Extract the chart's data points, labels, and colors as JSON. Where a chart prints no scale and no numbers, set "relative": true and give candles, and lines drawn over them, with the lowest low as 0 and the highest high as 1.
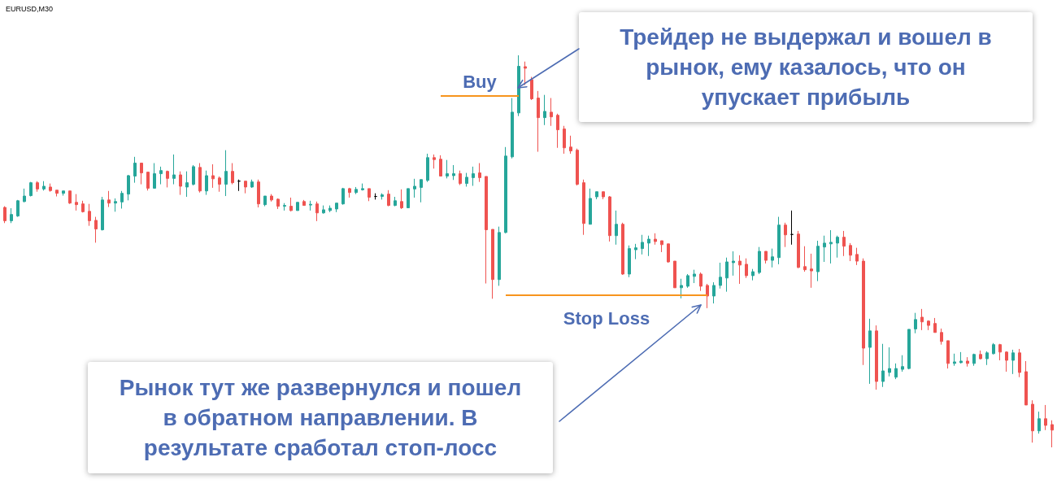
{
  "chart_data": {
    "type": "candlestick",
    "title": "EURUSD,M30",
    "relative": true,
    "categories": [
      null,
      null,
      null,
      null,
      null,
      null,
      null,
      null,
      null,
      null,
      null,
      null,
      null,
      null,
      null,
      null,
      null,
      null,
      null,
      null,
      null,
      null,
      null,
      null,
      null,
      null,
      null,
      null,
      null,
      null,
      null,
      null,
      null,
      null,
      null,
      null,
      null,
      null,
      null,
      null,
      null,
      null,
      null,
      null,
      null,
      null,
      null,
      null,
      null,
      null,
      null,
      null,
      null,
      null,
      null,
      null,
      null,
      null,
      null,
      null,
      null,
      null,
      null,
      null,
      null,
      null,
      null,
      null,
      null,
      null,
      null,
      null,
      null,
      null,
      null,
      null,
      null,
      null,
      null,
      null,
      null,
      null,
      null,
      null,
      null,
      null,
      null,
      null,
      null,
      null,
      null,
      null,
      null,
      null,
      null,
      null,
      null,
      null,
      null,
      null,
      null,
      null,
      null,
      null,
      null,
      null,
      null,
      null,
      null,
      null,
      null,
      null,
      null,
      null,
      null,
      null,
      null,
      null,
      null,
      null,
      null,
      null,
      null,
      null,
      null,
      null,
      null,
      null,
      null,
      null,
      null,
      null,
      null,
      null,
      null,
      null,
      null,
      null,
      null,
      null,
      null,
      null,
      null,
      null,
      null,
      null,
      null,
      null,
      null,
      null,
      null,
      null,
      null,
      null,
      null,
      null,
      null,
      null,
      null,
      null,
      null,
      null
    ],
    "ohlc": [
      [
        0.612,
        0.615,
        0.572,
        0.578
      ],
      [
        0.578,
        0.61,
        0.572,
        0.594
      ],
      [
        0.59,
        0.631,
        0.588,
        0.629
      ],
      [
        0.627,
        0.66,
        0.625,
        0.641
      ],
      [
        0.642,
        0.677,
        0.64,
        0.675
      ],
      [
        0.675,
        0.679,
        0.652,
        0.659
      ],
      [
        0.659,
        0.679,
        0.655,
        0.666
      ],
      [
        0.664,
        0.673,
        0.652,
        0.655
      ],
      [
        0.656,
        0.656,
        0.64,
        0.648
      ],
      [
        0.648,
        0.654,
        0.642,
        0.654
      ],
      [
        0.654,
        0.654,
        0.621,
        0.623
      ],
      [
        0.625,
        0.646,
        0.604,
        0.619
      ],
      [
        0.621,
        0.629,
        0.599,
        0.601
      ],
      [
        0.602,
        0.621,
        0.565,
        0.578
      ],
      [
        0.579,
        0.588,
        0.522,
        0.557
      ],
      [
        0.555,
        0.639,
        0.553,
        0.631
      ],
      [
        0.631,
        0.654,
        0.613,
        0.623
      ],
      [
        0.623,
        0.635,
        0.601,
        0.627
      ],
      [
        0.626,
        0.654,
        0.609,
        0.648
      ],
      [
        0.646,
        0.695,
        0.63,
        0.693
      ],
      [
        0.692,
        0.741,
        0.675,
        0.725
      ],
      [
        0.725,
        0.725,
        0.671,
        0.7
      ],
      [
        0.702,
        0.702,
        0.655,
        0.661
      ],
      [
        0.661,
        0.725,
        0.661,
        0.698
      ],
      [
        0.698,
        0.716,
        0.671,
        0.706
      ],
      [
        0.704,
        0.706,
        0.663,
        0.686
      ],
      [
        0.686,
        0.747,
        0.671,
        0.695
      ],
      [
        0.695,
        0.704,
        0.644,
        0.666
      ],
      [
        0.664,
        0.704,
        0.639,
        0.675
      ],
      [
        0.671,
        0.72,
        0.668,
        0.716
      ],
      [
        0.714,
        0.725,
        0.65,
        0.654
      ],
      [
        0.654,
        0.706,
        0.644,
        0.693
      ],
      [
        0.693,
        0.722,
        0.662,
        0.685
      ],
      [
        0.687,
        0.691,
        0.652,
        0.671
      ],
      [
        0.671,
        0.758,
        0.641,
        0.704
      ],
      [
        0.704,
        0.725,
        0.671,
        0.675
      ],
      [
        0.679,
        0.683,
        0.654,
        0.679
      ],
      [
        0.679,
        0.679,
        0.648,
        0.664
      ],
      [
        0.664,
        0.683,
        0.662,
        0.677
      ],
      [
        0.677,
        0.683,
        0.612,
        0.621
      ],
      [
        0.619,
        0.641,
        0.615,
        0.641
      ],
      [
        0.641,
        0.646,
        0.627,
        0.631
      ],
      [
        0.633,
        0.635,
        0.608,
        0.615
      ],
      [
        0.615,
        0.623,
        0.604,
        0.617
      ],
      [
        0.615,
        0.637,
        0.602,
        0.604
      ],
      [
        0.604,
        0.625,
        0.604,
        0.625
      ],
      [
        0.627,
        0.631,
        0.617,
        0.617
      ],
      [
        0.618,
        0.629,
        0.604,
        0.62
      ],
      [
        0.621,
        0.627,
        0.577,
        0.598
      ],
      [
        0.598,
        0.617,
        0.596,
        0.606
      ],
      [
        0.604,
        0.617,
        0.6,
        0.61
      ],
      [
        0.608,
        0.623,
        0.6,
        0.623
      ],
      [
        0.621,
        0.662,
        0.619,
        0.66
      ],
      [
        0.66,
        0.662,
        0.637,
        0.65
      ],
      [
        0.65,
        0.664,
        0.646,
        0.658
      ],
      [
        0.657,
        0.673,
        0.655,
        0.66
      ],
      [
        0.66,
        0.66,
        0.628,
        0.638
      ],
      [
        0.64,
        0.648,
        0.632,
        0.64
      ],
      [
        0.64,
        0.648,
        0.632,
        0.644
      ],
      [
        0.646,
        0.656,
        0.615,
        0.617
      ],
      [
        0.617,
        0.639,
        0.615,
        0.629
      ],
      [
        0.627,
        0.658,
        0.608,
        0.611
      ],
      [
        0.611,
        0.66,
        0.611,
        0.66
      ],
      [
        0.659,
        0.685,
        0.637,
        0.666
      ],
      [
        0.663,
        0.683,
        0.625,
        0.683
      ],
      [
        0.681,
        0.749,
        0.677,
        0.739
      ],
      [
        0.739,
        0.747,
        0.711,
        0.734
      ],
      [
        0.735,
        0.745,
        0.692,
        0.692
      ],
      [
        0.692,
        0.733,
        0.686,
        0.698
      ],
      [
        0.693,
        0.72,
        0.682,
        0.698
      ],
      [
        0.698,
        0.706,
        0.669,
        0.673
      ],
      [
        0.673,
        0.7,
        0.665,
        0.689
      ],
      [
        0.688,
        0.716,
        0.667,
        0.698
      ],
      [
        0.7,
        0.725,
        0.677,
        0.688
      ],
      [
        0.691,
        0.691,
        0.418,
        0.555
      ],
      [
        0.556,
        0.556,
        0.379,
        0.428
      ],
      [
        0.428,
        0.563,
        0.412,
        0.548
      ],
      [
        0.548,
        0.766,
        0.546,
        0.743
      ],
      [
        0.741,
        0.891,
        0.737,
        0.855
      ],
      [
        0.853,
        1.0,
        0.845,
        0.972
      ],
      [
        0.971,
        0.984,
        0.924,
        0.967
      ],
      [
        0.938,
        0.945,
        0.886,
        0.889
      ],
      [
        0.891,
        0.909,
        0.754,
        0.841
      ],
      [
        0.841,
        0.899,
        0.822,
        0.857
      ],
      [
        0.855,
        0.891,
        0.82,
        0.843
      ],
      [
        0.847,
        0.851,
        0.764,
        0.81
      ],
      [
        0.812,
        0.82,
        0.749,
        0.764
      ],
      [
        0.766,
        0.795,
        0.749,
        0.756
      ],
      [
        0.758,
        0.762,
        0.668,
        0.671
      ],
      [
        0.675,
        0.683,
        0.542,
        0.571
      ],
      [
        0.569,
        0.66,
        0.569,
        0.635
      ],
      [
        0.639,
        0.652,
        0.633,
        0.652
      ],
      [
        0.652,
        0.652,
        0.633,
        0.639
      ],
      [
        0.639,
        0.641,
        0.525,
        0.54
      ],
      [
        0.54,
        0.604,
        0.517,
        0.569
      ],
      [
        0.569,
        0.573,
        0.44,
        0.442
      ],
      [
        0.442,
        0.515,
        0.434,
        0.507
      ],
      [
        0.504,
        0.519,
        0.48,
        0.509
      ],
      [
        0.507,
        0.542,
        0.492,
        0.523
      ],
      [
        0.521,
        0.54,
        0.488,
        0.531
      ],
      [
        0.531,
        0.546,
        0.517,
        0.525
      ],
      [
        0.527,
        0.527,
        0.498,
        0.517
      ],
      [
        0.519,
        0.519,
        0.471,
        0.473
      ],
      [
        0.475,
        0.475,
        0.407,
        0.407
      ],
      [
        0.407,
        0.43,
        0.38,
        0.413
      ],
      [
        0.411,
        0.442,
        0.407,
        0.438
      ],
      [
        0.436,
        0.453,
        0.419,
        0.442
      ],
      [
        0.442,
        0.446,
        0.399,
        0.411
      ],
      [
        0.413,
        0.417,
        0.355,
        0.386
      ],
      [
        0.386,
        0.421,
        0.367,
        0.413
      ],
      [
        0.413,
        0.471,
        0.405,
        0.434
      ],
      [
        0.432,
        0.484,
        0.397,
        0.473
      ],
      [
        0.471,
        0.5,
        0.438,
        0.475
      ],
      [
        0.475,
        0.49,
        0.417,
        0.465
      ],
      [
        0.467,
        0.482,
        0.432,
        0.438
      ],
      [
        0.438,
        0.455,
        0.426,
        0.448
      ],
      [
        0.446,
        0.511,
        0.442,
        0.5
      ],
      [
        0.5,
        0.5,
        0.469,
        0.477
      ],
      [
        0.477,
        0.507,
        0.459,
        0.486
      ],
      [
        0.484,
        0.588,
        0.467,
        0.567
      ],
      [
        0.567,
        0.573,
        0.511,
        0.542
      ],
      [
        0.543,
        0.604,
        0.517,
        0.543
      ],
      [
        0.544,
        0.552,
        0.457,
        0.459
      ],
      [
        0.461,
        0.513,
        0.448,
        0.453
      ],
      [
        0.455,
        0.494,
        0.407,
        0.45
      ],
      [
        0.448,
        0.527,
        0.424,
        0.513
      ],
      [
        0.511,
        0.54,
        0.473,
        0.521
      ],
      [
        0.519,
        0.554,
        0.469,
        0.523
      ],
      [
        0.521,
        0.54,
        0.484,
        0.536
      ],
      [
        0.536,
        0.552,
        0.488,
        0.513
      ],
      [
        0.515,
        0.521,
        0.475,
        0.49
      ],
      [
        0.492,
        0.509,
        0.465,
        0.475
      ],
      [
        0.475,
        0.482,
        0.21,
        0.253
      ],
      [
        0.255,
        0.328,
        0.162,
        0.297
      ],
      [
        0.297,
        0.311,
        0.147,
        0.168
      ],
      [
        0.168,
        0.264,
        0.154,
        0.195
      ],
      [
        0.191,
        0.255,
        0.181,
        0.201
      ],
      [
        0.179,
        0.214,
        0.174,
        0.201
      ],
      [
        0.199,
        0.235,
        0.193,
        0.206
      ],
      [
        0.201,
        0.301,
        0.199,
        0.301
      ],
      [
        0.302,
        0.343,
        0.291,
        0.326
      ],
      [
        0.332,
        0.353,
        0.299,
        0.32
      ],
      [
        0.322,
        0.324,
        0.299,
        0.311
      ],
      [
        0.316,
        0.33,
        0.293,
        0.293
      ],
      [
        0.293,
        0.303,
        0.262,
        0.27
      ],
      [
        0.272,
        0.272,
        0.201,
        0.214
      ],
      [
        0.214,
        0.239,
        0.208,
        0.218
      ],
      [
        0.216,
        0.243,
        0.214,
        0.22
      ],
      [
        0.22,
        0.23,
        0.206,
        0.214
      ],
      [
        0.214,
        0.239,
        0.208,
        0.237
      ],
      [
        0.237,
        0.247,
        0.224,
        0.226
      ],
      [
        0.226,
        0.245,
        0.21,
        0.241
      ],
      [
        0.239,
        0.266,
        0.237,
        0.262
      ],
      [
        0.262,
        0.264,
        0.222,
        0.243
      ],
      [
        0.243,
        0.245,
        0.193,
        0.222
      ],
      [
        0.222,
        0.249,
        0.187,
        0.241
      ],
      [
        0.241,
        0.251,
        0.179,
        0.191
      ],
      [
        0.193,
        0.22,
        0.108,
        0.108
      ],
      [
        0.11,
        0.12,
        0.012,
        0.042
      ],
      [
        0.042,
        0.091,
        0.035,
        0.073
      ],
      [
        0.073,
        0.108,
        0.044,
        0.056
      ],
      [
        0.058,
        0.069,
        0.0,
        0.044
      ]
    ],
    "colors": [
      "#ef5350",
      "#26a69a",
      "#26a69a",
      "#26a69a",
      "#26a69a",
      "#ef5350",
      "#26a69a",
      "#ef5350",
      "#ef5350",
      "#26a69a",
      "#ef5350",
      "#ef5350",
      "#ef5350",
      "#ef5350",
      "#ef5350",
      "#26a69a",
      "#ef5350",
      "#26a69a",
      "#26a69a",
      "#26a69a",
      "#26a69a",
      "#ef5350",
      "#ef5350",
      "#26a69a",
      "#26a69a",
      "#ef5350",
      "#26a69a",
      "#ef5350",
      "#26a69a",
      "#26a69a",
      "#ef5350",
      "#26a69a",
      "#ef5350",
      "#ef5350",
      "#26a69a",
      "#ef5350",
      "#000000",
      "#ef5350",
      "#26a69a",
      "#ef5350",
      "#26a69a",
      "#ef5350",
      "#ef5350",
      "#26a69a",
      "#ef5350",
      "#26a69a",
      "#ef5350",
      "#26a69a",
      "#ef5350",
      "#26a69a",
      "#26a69a",
      "#26a69a",
      "#26a69a",
      "#ef5350",
      "#26a69a",
      "#26a69a",
      "#ef5350",
      "#000000",
      "#26a69a",
      "#ef5350",
      "#26a69a",
      "#ef5350",
      "#26a69a",
      "#26a69a",
      "#26a69a",
      "#26a69a",
      "#ef5350",
      "#ef5350",
      "#26a69a",
      "#26a69a",
      "#ef5350",
      "#26a69a",
      "#26a69a",
      "#ef5350",
      "#ef5350",
      "#ef5350",
      "#26a69a",
      "#26a69a",
      "#26a69a",
      "#26a69a",
      "#ef5350",
      "#ef5350",
      "#ef5350",
      "#26a69a",
      "#ef5350",
      "#ef5350",
      "#ef5350",
      "#ef5350",
      "#ef5350",
      "#ef5350",
      "#26a69a",
      "#26a69a",
      "#ef5350",
      "#ef5350",
      "#26a69a",
      "#ef5350",
      "#26a69a",
      "#26a69a",
      "#26a69a",
      "#26a69a",
      "#ef5350",
      "#ef5350",
      "#ef5350",
      "#ef5350",
      "#26a69a",
      "#26a69a",
      "#26a69a",
      "#ef5350",
      "#ef5350",
      "#26a69a",
      "#26a69a",
      "#26a69a",
      "#26a69a",
      "#ef5350",
      "#ef5350",
      "#26a69a",
      "#26a69a",
      "#ef5350",
      "#26a69a",
      "#26a69a",
      "#ef5350",
      "#000000",
      "#ef5350",
      "#ef5350",
      "#ef5350",
      "#26a69a",
      "#26a69a",
      "#26a69a",
      "#26a69a",
      "#ef5350",
      "#ef5350",
      "#ef5350",
      "#ef5350",
      "#26a69a",
      "#ef5350",
      "#26a69a",
      "#26a69a",
      "#26a69a",
      "#26a69a",
      "#26a69a",
      "#26a69a",
      "#ef5350",
      "#ef5350",
      "#ef5350",
      "#ef5350",
      "#ef5350",
      "#26a69a",
      "#26a69a",
      "#ef5350",
      "#26a69a",
      "#ef5350",
      "#26a69a",
      "#26a69a",
      "#ef5350",
      "#ef5350",
      "#26a69a",
      "#ef5350",
      "#ef5350",
      "#ef5350",
      "#26a69a",
      "#ef5350",
      "#ef5350"
    ],
    "ref_lines": [
      {
        "axis": "y",
        "value": 0.897,
        "label": "Buy",
        "color": "#f7941d"
      },
      {
        "axis": "y",
        "value": 0.389,
        "label": "Stop Loss",
        "color": "#f7941d"
      }
    ],
    "annotations": [
      "Трейдер не выдержал и вошел в рынок, ему казалось, что он упускает прибыль",
      "Рынок тут же развернулся и пошел в обратном направлении. В результате сработал стоп-лосс"
    ]
  }
}
